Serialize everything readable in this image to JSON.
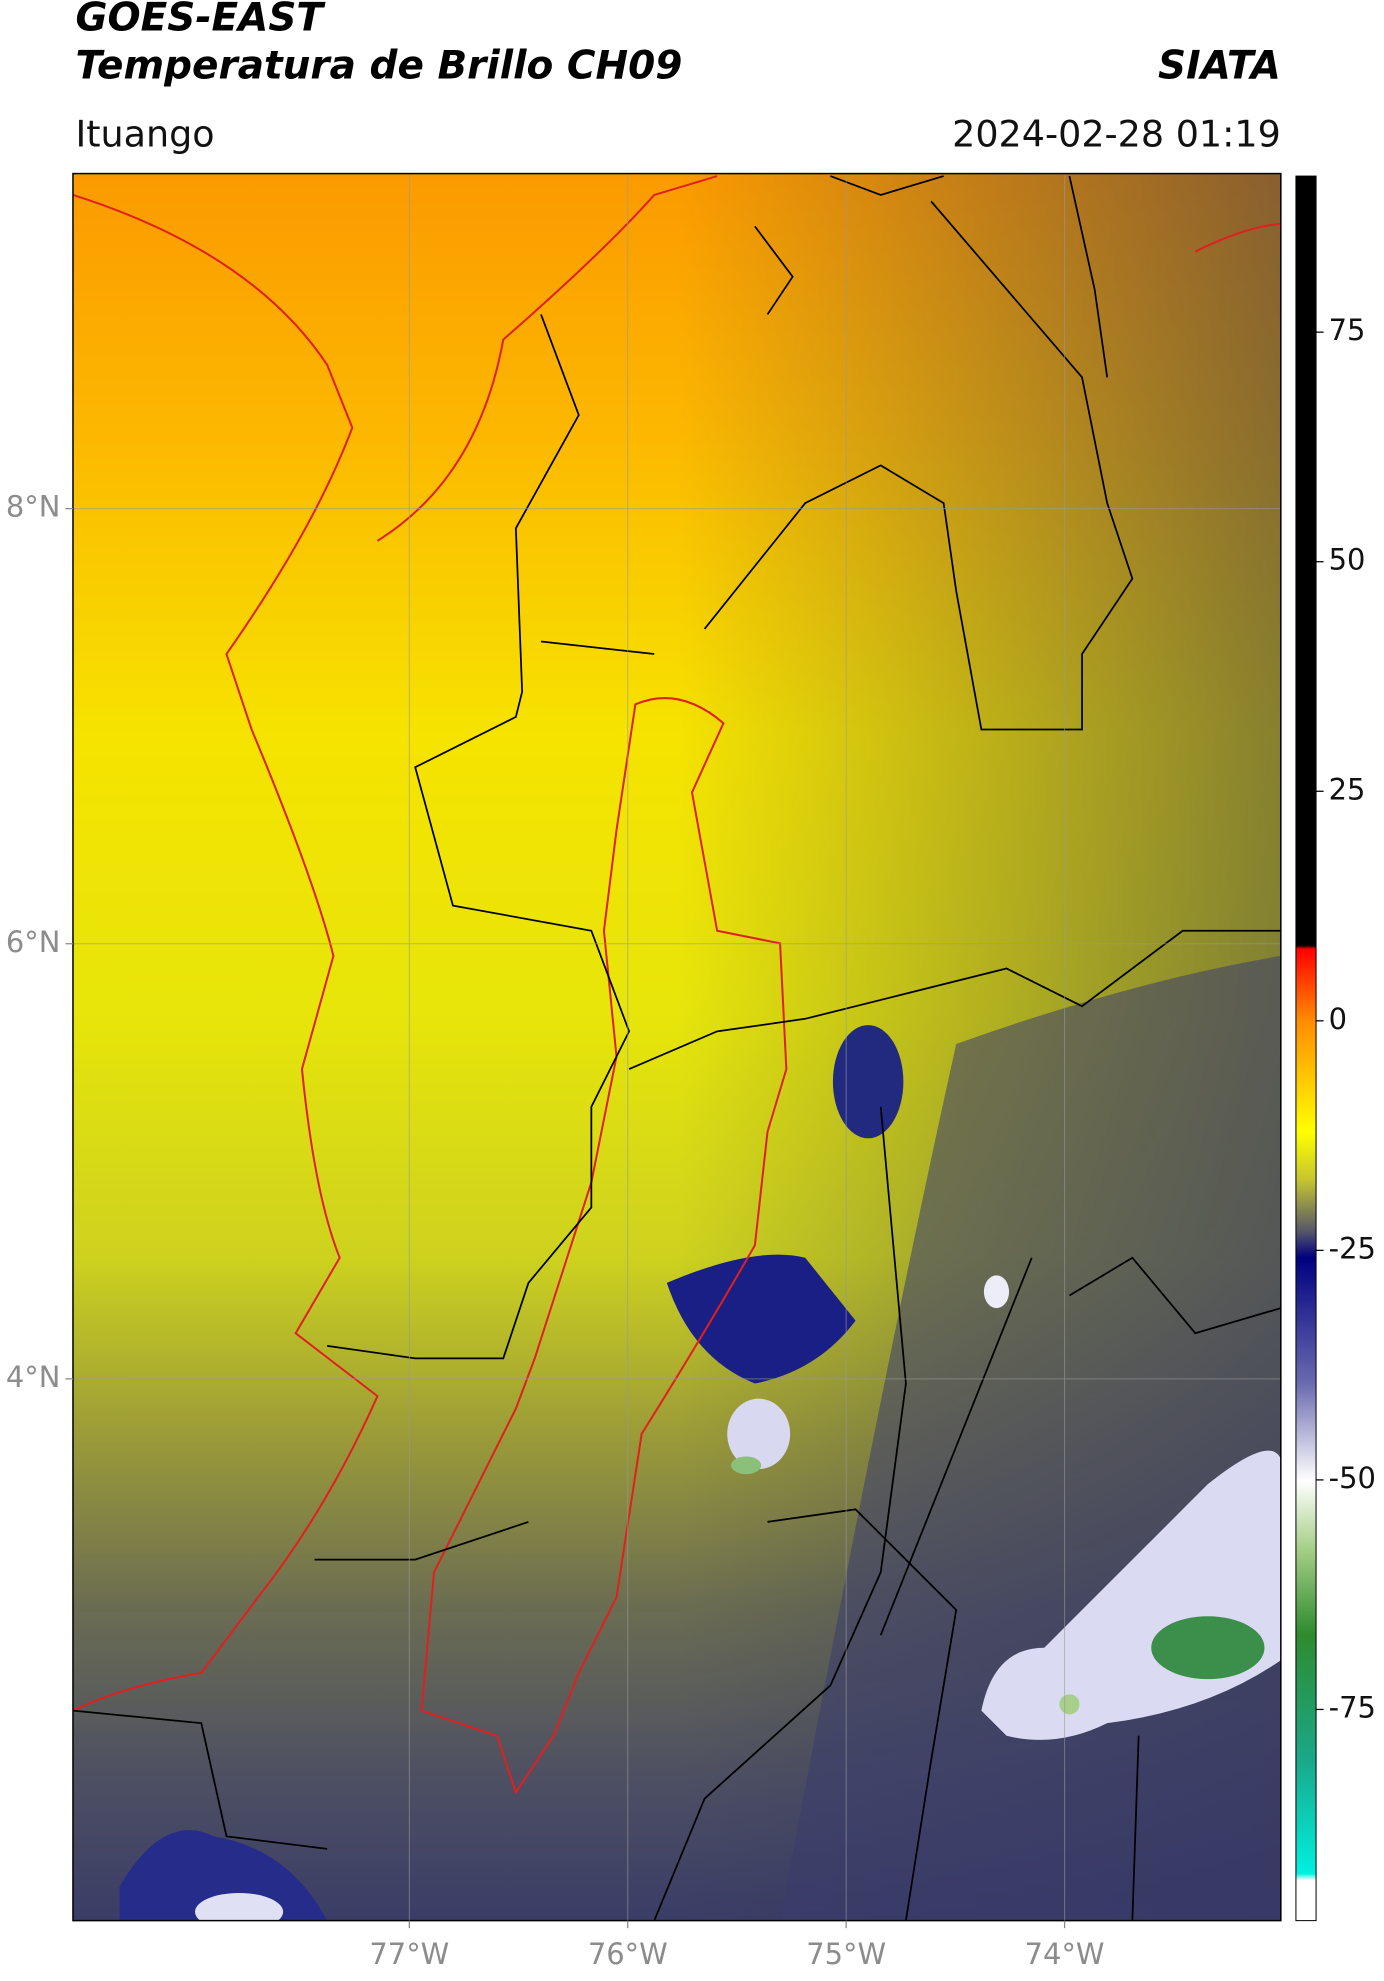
{
  "header": {
    "title": "GOES-EAST",
    "subtitle": "Temperatura de Brillo CH09",
    "source": "SIATA",
    "location": "Ituango",
    "datetime": "2024-02-28 01:19"
  },
  "map": {
    "xlim": [
      -78.54,
      -73.01
    ],
    "ylim": [
      1.51,
      9.54
    ],
    "grid": true,
    "xticks": [
      {
        "value": -77,
        "label": "77°W"
      },
      {
        "value": -76,
        "label": "76°W"
      },
      {
        "value": -75,
        "label": "75°W"
      },
      {
        "value": -74,
        "label": "74°W"
      }
    ],
    "yticks": [
      {
        "value": 8,
        "label": "8°N"
      },
      {
        "value": 6,
        "label": "6°N"
      },
      {
        "value": 4,
        "label": "4°N"
      }
    ]
  },
  "colorbar": {
    "clim": [
      -98,
      92
    ],
    "ticks": [
      75,
      50,
      25,
      0,
      -25,
      -50,
      -75
    ]
  }
}
